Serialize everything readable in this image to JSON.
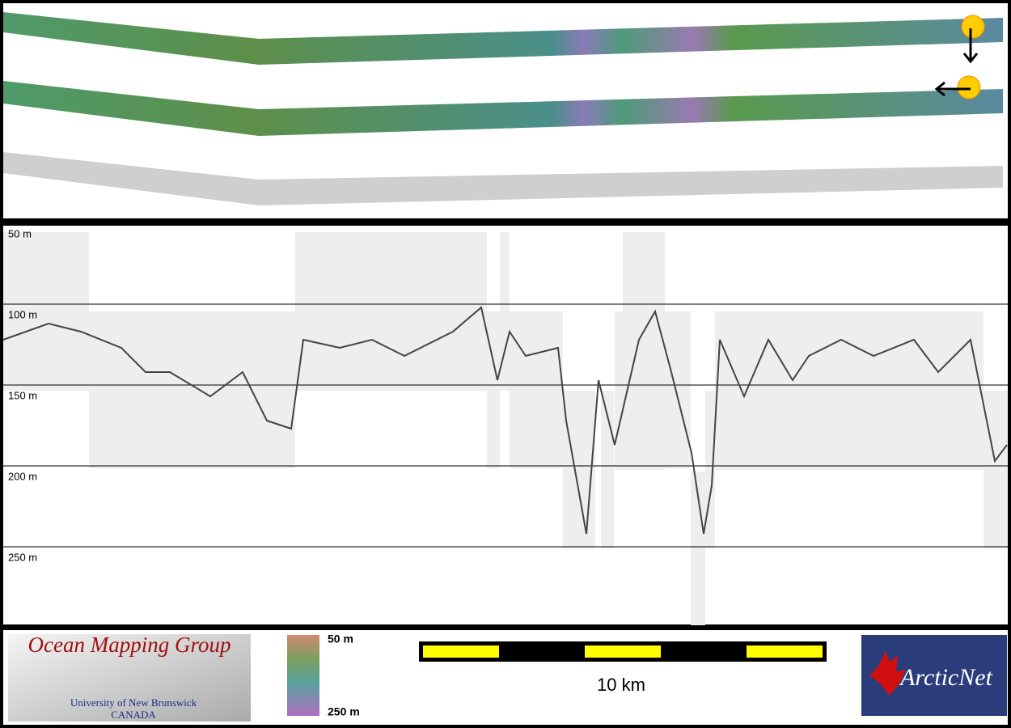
{
  "echogram": {
    "depth_labels": [
      "50 m",
      "100 m",
      "150 m",
      "200 m",
      "250 m"
    ]
  },
  "legend": {
    "colorbar": {
      "top_label": "50 m",
      "bottom_label": "250 m"
    },
    "scale_bar": {
      "label": "10 km"
    }
  },
  "logos": {
    "omg": {
      "title": "Ocean Mapping Group",
      "subtitle": "University of New Brunswick",
      "country": "CANADA"
    },
    "arcticnet": {
      "label": "ArcticNet"
    }
  }
}
